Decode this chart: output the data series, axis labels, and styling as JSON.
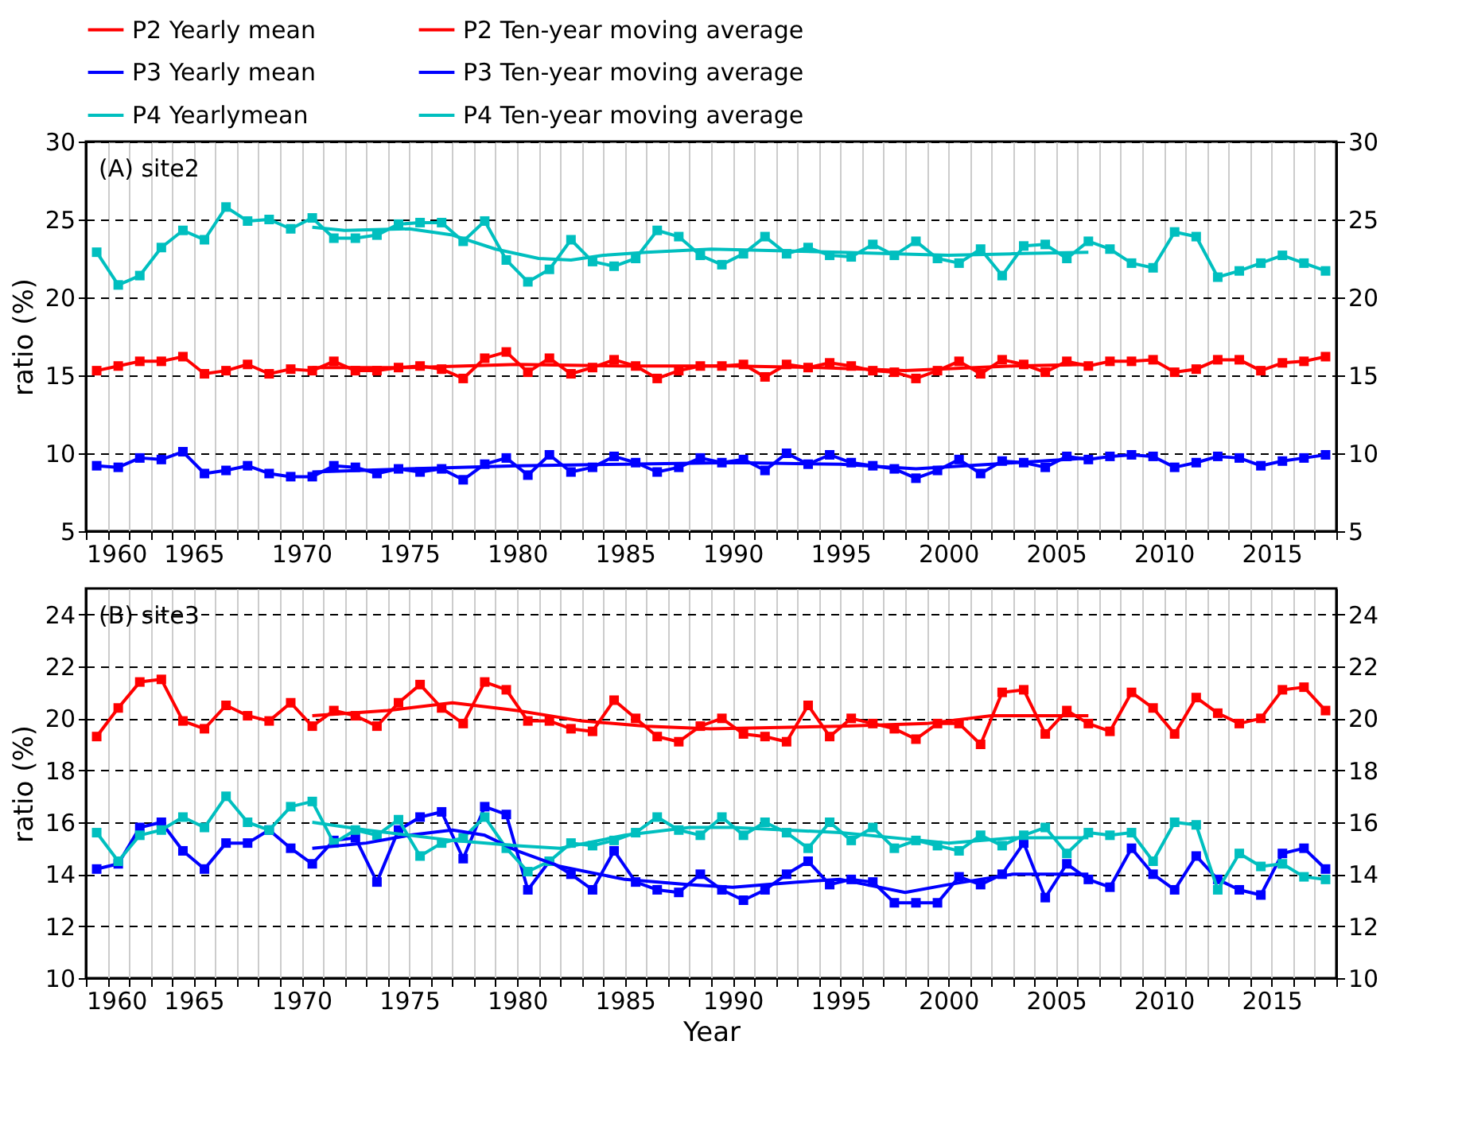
{
  "chart_data": [
    {
      "type": "line",
      "annotations": [
        "(A) site2"
      ],
      "ylabel": "ratio (%)",
      "legend": "top",
      "grid": true,
      "line_style": "solid",
      "xlim": [
        1960,
        2018
      ],
      "xticks": [
        1960,
        {
          "value": 1961,
          "label": null
        },
        {
          "value": 1962,
          "label": null
        },
        {
          "value": 1963,
          "label": null
        },
        {
          "value": 1964,
          "label": null
        },
        1965,
        {
          "value": 1966,
          "label": null
        },
        {
          "value": 1967,
          "label": null
        },
        {
          "value": 1968,
          "label": null
        },
        {
          "value": 1969,
          "label": null
        },
        1970,
        {
          "value": 1971,
          "label": null
        },
        {
          "value": 1972,
          "label": null
        },
        {
          "value": 1973,
          "label": null
        },
        {
          "value": 1974,
          "label": null
        },
        1975,
        {
          "value": 1976,
          "label": null
        },
        {
          "value": 1977,
          "label": null
        },
        {
          "value": 1978,
          "label": null
        },
        {
          "value": 1979,
          "label": null
        },
        1980,
        {
          "value": 1981,
          "label": null
        },
        {
          "value": 1982,
          "label": null
        },
        {
          "value": 1983,
          "label": null
        },
        {
          "value": 1984,
          "label": null
        },
        1985,
        {
          "value": 1986,
          "label": null
        },
        {
          "value": 1987,
          "label": null
        },
        {
          "value": 1988,
          "label": null
        },
        {
          "value": 1989,
          "label": null
        },
        1990,
        {
          "value": 1991,
          "label": null
        },
        {
          "value": 1992,
          "label": null
        },
        {
          "value": 1993,
          "label": null
        },
        {
          "value": 1994,
          "label": null
        },
        1995,
        {
          "value": 1996,
          "label": null
        },
        {
          "value": 1997,
          "label": null
        },
        {
          "value": 1998,
          "label": null
        },
        {
          "value": 1999,
          "label": null
        },
        2000,
        {
          "value": 2001,
          "label": null
        },
        {
          "value": 2002,
          "label": null
        },
        {
          "value": 2003,
          "label": null
        },
        {
          "value": 2004,
          "label": null
        },
        2005,
        {
          "value": 2006,
          "label": null
        },
        {
          "value": 2007,
          "label": null
        },
        {
          "value": 2008,
          "label": null
        },
        {
          "value": 2009,
          "label": null
        },
        2010,
        {
          "value": 2011,
          "label": null
        },
        {
          "value": 2012,
          "label": null
        },
        {
          "value": 2013,
          "label": null
        },
        {
          "value": 2014,
          "label": null
        },
        2015,
        {
          "value": 2016,
          "label": null
        },
        {
          "value": 2017,
          "label": null
        },
        {
          "value": 2018,
          "label": null
        }
      ],
      "ylim": [
        5,
        30
      ],
      "yticks": [
        5,
        10,
        15,
        20,
        25,
        30
      ],
      "y2lim": [
        5,
        30
      ],
      "y2ticks": [
        5,
        10,
        15,
        20,
        25,
        30
      ],
      "x": [
        1960.5,
        1961.5,
        1962.5,
        1963.5,
        1964.5,
        1965.5,
        1966.5,
        1967.5,
        1968.5,
        1969.5,
        1970.5,
        1971.5,
        1972.5,
        1973.5,
        1974.5,
        1975.5,
        1976.5,
        1977.5,
        1978.5,
        1979.5,
        1980.5,
        1981.5,
        1982.5,
        1983.5,
        1984.5,
        1985.5,
        1986.5,
        1987.5,
        1988.5,
        1989.5,
        1990.5,
        1991.5,
        1992.5,
        1993.5,
        1994.5,
        1995.5,
        1996.5,
        1997.5,
        1998.5,
        1999.5,
        2000.5,
        2001.5,
        2002.5,
        2003.5,
        2004.5,
        2005.5,
        2006.5,
        2007.5,
        2008.5,
        2009.5,
        2010.5,
        2011.5,
        2012.5,
        2013.5,
        2014.5,
        2015.5,
        2016.5,
        2017.5
      ],
      "series": [
        {
          "name": "P2 Yearly mean",
          "color": "#ff0000",
          "marker": "square",
          "values": [
            15.3,
            15.6,
            15.9,
            15.9,
            16.2,
            15.1,
            15.3,
            15.7,
            15.1,
            15.4,
            15.3,
            15.9,
            15.3,
            15.3,
            15.5,
            15.6,
            15.4,
            14.8,
            16.1,
            16.5,
            15.2,
            16.1,
            15.1,
            15.5,
            16.0,
            15.6,
            14.8,
            15.3,
            15.6,
            15.6,
            15.7,
            14.9,
            15.7,
            15.5,
            15.8,
            15.6,
            15.3,
            15.2,
            14.8,
            15.3,
            15.9,
            15.1,
            16.0,
            15.7,
            15.2,
            15.9,
            15.6,
            15.9,
            15.9,
            16.0,
            15.2,
            15.4,
            16.0,
            16.0,
            15.3,
            15.8,
            15.9,
            16.2
          ]
        },
        {
          "name": "P3 Yearly mean",
          "color": "#0000ff",
          "marker": "square",
          "values": [
            9.2,
            9.1,
            9.7,
            9.6,
            10.1,
            8.7,
            8.9,
            9.2,
            8.7,
            8.5,
            8.5,
            9.2,
            9.1,
            8.7,
            9.0,
            8.8,
            9.0,
            8.3,
            9.3,
            9.7,
            8.6,
            9.9,
            8.8,
            9.1,
            9.8,
            9.4,
            8.8,
            9.1,
            9.7,
            9.4,
            9.6,
            8.9,
            10.0,
            9.3,
            9.9,
            9.4,
            9.2,
            9.0,
            8.4,
            8.9,
            9.6,
            8.7,
            9.5,
            9.4,
            9.1,
            9.8,
            9.6,
            9.8,
            9.9,
            9.8,
            9.1,
            9.4,
            9.8,
            9.7,
            9.2,
            9.5,
            9.7,
            9.9
          ]
        },
        {
          "name": "P4 Yearlymean",
          "color": "#00bfbf",
          "marker": "square",
          "values": [
            22.9,
            20.8,
            21.4,
            23.2,
            24.3,
            23.7,
            25.8,
            24.9,
            25.0,
            24.4,
            25.1,
            23.8,
            23.8,
            24.0,
            24.7,
            24.8,
            24.8,
            23.6,
            24.9,
            22.4,
            21.0,
            21.8,
            23.7,
            22.3,
            22.0,
            22.5,
            24.3,
            23.9,
            22.7,
            22.1,
            22.8,
            23.9,
            22.8,
            23.2,
            22.7,
            22.6,
            23.4,
            22.7,
            23.6,
            22.5,
            22.2,
            23.1,
            21.4,
            23.3,
            23.4,
            22.5,
            23.6,
            23.1,
            22.2,
            21.9,
            24.2,
            23.9,
            21.3,
            21.7,
            22.2,
            22.7,
            22.2,
            21.7
          ]
        },
        {
          "name": "P2 Ten-year moving average",
          "color": "#ff0000",
          "marker": "none",
          "x": [
            1970.5,
            1975,
            1980,
            1985,
            1990,
            1994,
            1998,
            2003,
            2006.5
          ],
          "values": [
            15.5,
            15.5,
            15.7,
            15.6,
            15.6,
            15.5,
            15.3,
            15.6,
            15.7
          ]
        },
        {
          "name": "P3 Ten-year moving average",
          "color": "#0000ff",
          "marker": "none",
          "x": [
            1970.5,
            1975,
            1980,
            1985,
            1990,
            1995,
            1998.5,
            2002,
            2006.5
          ],
          "values": [
            8.8,
            9.0,
            9.2,
            9.3,
            9.4,
            9.3,
            9.0,
            9.3,
            9.7
          ]
        },
        {
          "name": "P4 Ten-year moving average",
          "color": "#00bfbf",
          "marker": "none",
          "x": [
            1970.5,
            1972,
            1975,
            1977,
            1979,
            1981,
            1982.5,
            1984,
            1986,
            1989,
            1995,
            2000,
            2003,
            2006.5
          ],
          "values": [
            24.5,
            24.3,
            24.4,
            24.0,
            23.1,
            22.5,
            22.4,
            22.7,
            22.9,
            23.1,
            22.9,
            22.7,
            22.8,
            22.9
          ]
        }
      ]
    },
    {
      "type": "line",
      "annotations": [
        "(B) site3"
      ],
      "ylabel": "ratio (%)",
      "xlabel": "Year",
      "legend": false,
      "grid": true,
      "line_style": "solid",
      "xlim": [
        1960,
        2018
      ],
      "xticks": [
        1960,
        {
          "value": 1961,
          "label": null
        },
        {
          "value": 1962,
          "label": null
        },
        {
          "value": 1963,
          "label": null
        },
        {
          "value": 1964,
          "label": null
        },
        1965,
        {
          "value": 1966,
          "label": null
        },
        {
          "value": 1967,
          "label": null
        },
        {
          "value": 1968,
          "label": null
        },
        {
          "value": 1969,
          "label": null
        },
        1970,
        {
          "value": 1971,
          "label": null
        },
        {
          "value": 1972,
          "label": null
        },
        {
          "value": 1973,
          "label": null
        },
        {
          "value": 1974,
          "label": null
        },
        1975,
        {
          "value": 1976,
          "label": null
        },
        {
          "value": 1977,
          "label": null
        },
        {
          "value": 1978,
          "label": null
        },
        {
          "value": 1979,
          "label": null
        },
        1980,
        {
          "value": 1981,
          "label": null
        },
        {
          "value": 1982,
          "label": null
        },
        {
          "value": 1983,
          "label": null
        },
        {
          "value": 1984,
          "label": null
        },
        1985,
        {
          "value": 1986,
          "label": null
        },
        {
          "value": 1987,
          "label": null
        },
        {
          "value": 1988,
          "label": null
        },
        {
          "value": 1989,
          "label": null
        },
        1990,
        {
          "value": 1991,
          "label": null
        },
        {
          "value": 1992,
          "label": null
        },
        {
          "value": 1993,
          "label": null
        },
        {
          "value": 1994,
          "label": null
        },
        1995,
        {
          "value": 1996,
          "label": null
        },
        {
          "value": 1997,
          "label": null
        },
        {
          "value": 1998,
          "label": null
        },
        {
          "value": 1999,
          "label": null
        },
        2000,
        {
          "value": 2001,
          "label": null
        },
        {
          "value": 2002,
          "label": null
        },
        {
          "value": 2003,
          "label": null
        },
        {
          "value": 2004,
          "label": null
        },
        2005,
        {
          "value": 2006,
          "label": null
        },
        {
          "value": 2007,
          "label": null
        },
        {
          "value": 2008,
          "label": null
        },
        {
          "value": 2009,
          "label": null
        },
        2010,
        {
          "value": 2011,
          "label": null
        },
        {
          "value": 2012,
          "label": null
        },
        {
          "value": 2013,
          "label": null
        },
        {
          "value": 2014,
          "label": null
        },
        2015,
        {
          "value": 2016,
          "label": null
        },
        {
          "value": 2017,
          "label": null
        },
        {
          "value": 2018,
          "label": null
        }
      ],
      "ylim": [
        10,
        25
      ],
      "yticks": [
        10,
        12,
        14,
        16,
        18,
        20,
        22,
        24
      ],
      "y2lim": [
        10,
        25
      ],
      "y2ticks": [
        10,
        12,
        14,
        16,
        18,
        20,
        22,
        24
      ],
      "x": [
        1960.5,
        1961.5,
        1962.5,
        1963.5,
        1964.5,
        1965.5,
        1966.5,
        1967.5,
        1968.5,
        1969.5,
        1970.5,
        1971.5,
        1972.5,
        1973.5,
        1974.5,
        1975.5,
        1976.5,
        1977.5,
        1978.5,
        1979.5,
        1980.5,
        1981.5,
        1982.5,
        1983.5,
        1984.5,
        1985.5,
        1986.5,
        1987.5,
        1988.5,
        1989.5,
        1990.5,
        1991.5,
        1992.5,
        1993.5,
        1994.5,
        1995.5,
        1996.5,
        1997.5,
        1998.5,
        1999.5,
        2000.5,
        2001.5,
        2002.5,
        2003.5,
        2004.5,
        2005.5,
        2006.5,
        2007.5,
        2008.5,
        2009.5,
        2010.5,
        2011.5,
        2012.5,
        2013.5,
        2014.5,
        2015.5,
        2016.5,
        2017.5
      ],
      "series": [
        {
          "name": "P2 Yearly mean",
          "color": "#ff0000",
          "marker": "square",
          "values": [
            19.3,
            20.4,
            21.4,
            21.5,
            19.9,
            19.6,
            20.5,
            20.1,
            19.9,
            20.6,
            19.7,
            20.3,
            20.1,
            19.7,
            20.6,
            21.3,
            20.4,
            19.8,
            21.4,
            21.1,
            19.9,
            19.9,
            19.6,
            19.5,
            20.7,
            20.0,
            19.3,
            19.1,
            19.7,
            20.0,
            19.4,
            19.3,
            19.1,
            20.5,
            19.3,
            20.0,
            19.8,
            19.6,
            19.2,
            19.8,
            19.8,
            19.0,
            21.0,
            21.1,
            19.4,
            20.3,
            19.8,
            19.5,
            21.0,
            20.4,
            19.4,
            20.8,
            20.2,
            19.8,
            20.0,
            21.1,
            21.2,
            20.3
          ]
        },
        {
          "name": "P3 Yearly mean",
          "color": "#0000ff",
          "marker": "square",
          "values": [
            14.2,
            14.4,
            15.8,
            16.0,
            14.9,
            14.2,
            15.2,
            15.2,
            15.7,
            15.0,
            14.4,
            15.3,
            15.4,
            13.7,
            15.7,
            16.2,
            16.4,
            14.6,
            16.6,
            16.3,
            13.4,
            14.5,
            14.0,
            13.4,
            14.9,
            13.7,
            13.4,
            13.3,
            14.0,
            13.4,
            13.0,
            13.4,
            14.0,
            14.5,
            13.6,
            13.8,
            13.7,
            12.9,
            12.9,
            12.9,
            13.9,
            13.6,
            14.0,
            15.2,
            13.1,
            14.4,
            13.8,
            13.5,
            15.0,
            14.0,
            13.4,
            14.7,
            13.8,
            13.4,
            13.2,
            14.8,
            15.0,
            14.2
          ]
        },
        {
          "name": "P4 Yearlymean",
          "color": "#00bfbf",
          "marker": "square",
          "values": [
            15.6,
            14.5,
            15.5,
            15.7,
            16.2,
            15.8,
            17.0,
            16.0,
            15.7,
            16.6,
            16.8,
            15.2,
            15.7,
            15.5,
            16.1,
            14.7,
            15.2,
            15.4,
            16.2,
            15.0,
            14.1,
            14.5,
            15.2,
            15.1,
            15.3,
            15.6,
            16.2,
            15.7,
            15.5,
            16.2,
            15.5,
            16.0,
            15.6,
            15.0,
            16.0,
            15.3,
            15.8,
            15.0,
            15.3,
            15.1,
            14.9,
            15.5,
            15.1,
            15.5,
            15.8,
            14.8,
            15.6,
            15.5,
            15.6,
            14.5,
            16.0,
            15.9,
            13.4,
            14.8,
            14.3,
            14.4,
            13.9,
            13.8
          ]
        },
        {
          "name": "P2 Ten-year moving average",
          "color": "#ff0000",
          "marker": "none",
          "x": [
            1970.5,
            1974,
            1977,
            1980,
            1983,
            1986,
            1989,
            1995,
            1999,
            2002,
            2006.5
          ],
          "values": [
            20.1,
            20.3,
            20.6,
            20.3,
            19.9,
            19.7,
            19.6,
            19.7,
            19.8,
            20.1,
            20.1
          ]
        },
        {
          "name": "P3 Ten-year moving average",
          "color": "#0000ff",
          "marker": "none",
          "x": [
            1970.5,
            1973,
            1975,
            1977,
            1978.5,
            1980,
            1982,
            1985,
            1988,
            1990,
            1993,
            1995,
            1998,
            2000,
            2003,
            2006.5
          ],
          "values": [
            15.0,
            15.2,
            15.5,
            15.7,
            15.5,
            14.9,
            14.3,
            13.8,
            13.6,
            13.5,
            13.7,
            13.8,
            13.3,
            13.6,
            14.0,
            14.0
          ]
        },
        {
          "name": "P4 Ten-year moving average",
          "color": "#00bfbf",
          "marker": "none",
          "x": [
            1970.5,
            1973,
            1977,
            1980,
            1982,
            1985,
            1988,
            1990,
            1995,
            2000,
            2003,
            2006.5
          ],
          "values": [
            16.0,
            15.7,
            15.3,
            15.1,
            15.0,
            15.5,
            15.8,
            15.8,
            15.6,
            15.2,
            15.4,
            15.4
          ]
        }
      ]
    }
  ]
}
